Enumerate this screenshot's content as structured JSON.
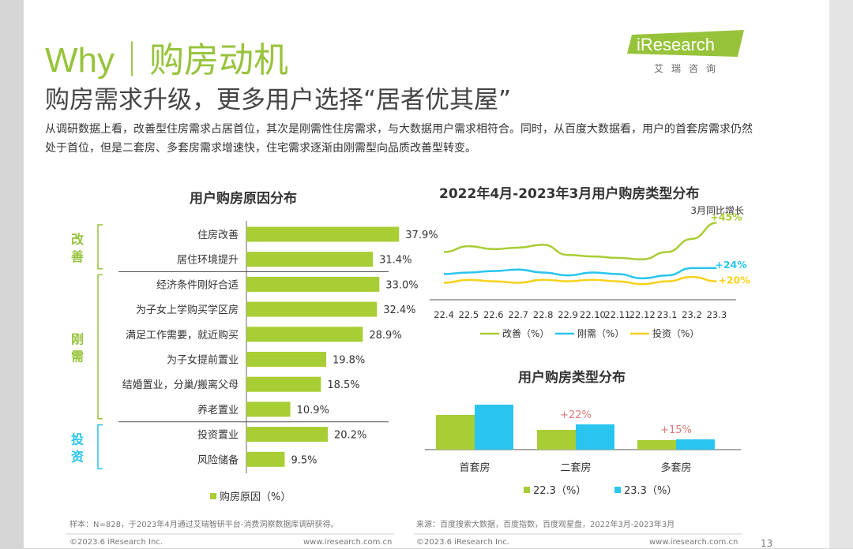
{
  "page": {
    "title": "Why｜购房动机",
    "subtitle": "购房需求升级，更多用户选择“居者优其屋”",
    "paragraph": "从调研数据上看，改善型住房需求占居首位，其次是刚需性住房需求，与大数据用户需求相符合。同时，从百度大数据看，用户的首套房需求仍然处于首位，但是二套房、多套房需求增速快，住宅需求逐渐由刚需型向品质改善型转变。",
    "page_number": "13",
    "colors": {
      "accent_green": "#97c33b",
      "bar_green": "#a8cd35",
      "cyan": "#29c5ee",
      "yellow": "#f6d21c"
    }
  },
  "logo": {
    "word": "iResearch",
    "sub": "艾瑞咨询",
    "icon": "iresearch-logo-icon"
  },
  "left_footer": {
    "sample_note": "样本：N=828，于2023年4月通过艾瑞智研平台-消费洞察数据库调研获得。",
    "copyright": "©2023.6 iResearch Inc.",
    "url": "www.iresearch.com.cn"
  },
  "right_footer": {
    "source_note": "来源：百度搜索大数据，百度指数，百度观星盘，2022年3月-2023年3月",
    "copyright": "©2023.6 iResearch Inc.",
    "url": "www.iresearch.com.cn"
  },
  "chart_data": [
    {
      "type": "bar",
      "orientation": "horizontal",
      "title": "用户购房原因分布",
      "categories": [
        "住房改善",
        "居住环境提升",
        "经济条件刚好合适",
        "为子女上学购买学区房",
        "满足工作需要，就近购买",
        "为子女提前置业",
        "结婚置业，分巢/搬离父母",
        "养老置业",
        "投资置业",
        "风险储备"
      ],
      "values": [
        37.9,
        31.4,
        33.0,
        32.4,
        28.9,
        19.8,
        18.5,
        10.9,
        20.2,
        9.5
      ],
      "value_labels": [
        "37.9%",
        "31.4%",
        "33.0%",
        "32.4%",
        "28.9%",
        "19.8%",
        "18.5%",
        "10.9%",
        "20.2%",
        "9.5%"
      ],
      "groups": [
        {
          "label": "改善",
          "range": [
            0,
            1
          ]
        },
        {
          "label": "刚需",
          "range": [
            2,
            7
          ]
        },
        {
          "label": "投资",
          "range": [
            8,
            9
          ]
        }
      ],
      "legend": [
        "购房原因（%）"
      ],
      "xlim": [
        0,
        40
      ]
    },
    {
      "type": "line",
      "title": "2022年4月-2023年3月用户购房类型分布",
      "x": [
        "22.4",
        "22.5",
        "22.6",
        "22.7",
        "22.8",
        "22.9",
        "22.10",
        "22.11",
        "22.12",
        "23.1",
        "23.2",
        "23.3"
      ],
      "series": [
        {
          "name": "改善（%）",
          "color": "#a8cd35",
          "values": [
            66,
            70,
            68,
            69,
            71,
            64,
            63,
            62,
            61,
            66,
            75,
            86
          ],
          "end_label": "+45%"
        },
        {
          "name": "刚需（%）",
          "color": "#29c5ee",
          "values": [
            51,
            52,
            53,
            54,
            52,
            50,
            52,
            51,
            48,
            50,
            55,
            55
          ],
          "end_label": "+24%"
        },
        {
          "name": "投资（%）",
          "color": "#f6d21c",
          "values": [
            45,
            47,
            46,
            45,
            47,
            46,
            47,
            46,
            44,
            46,
            49,
            46
          ],
          "end_label": "+20%"
        }
      ],
      "annotation": "3月同比增长",
      "ylim": [
        35,
        90
      ]
    },
    {
      "type": "bar",
      "title": "用户购房类型分布",
      "categories": [
        "首套房",
        "二套房",
        "多套房"
      ],
      "series": [
        {
          "name": "22.3（%）",
          "color": "#a8cd35",
          "values": [
            44,
            25,
            12
          ]
        },
        {
          "name": "23.3（%）",
          "color": "#29c5ee",
          "values": [
            57,
            32,
            13
          ]
        }
      ],
      "growth_labels": [
        "",
        "+22%",
        "+15%"
      ],
      "ylim": [
        0,
        60
      ]
    }
  ]
}
